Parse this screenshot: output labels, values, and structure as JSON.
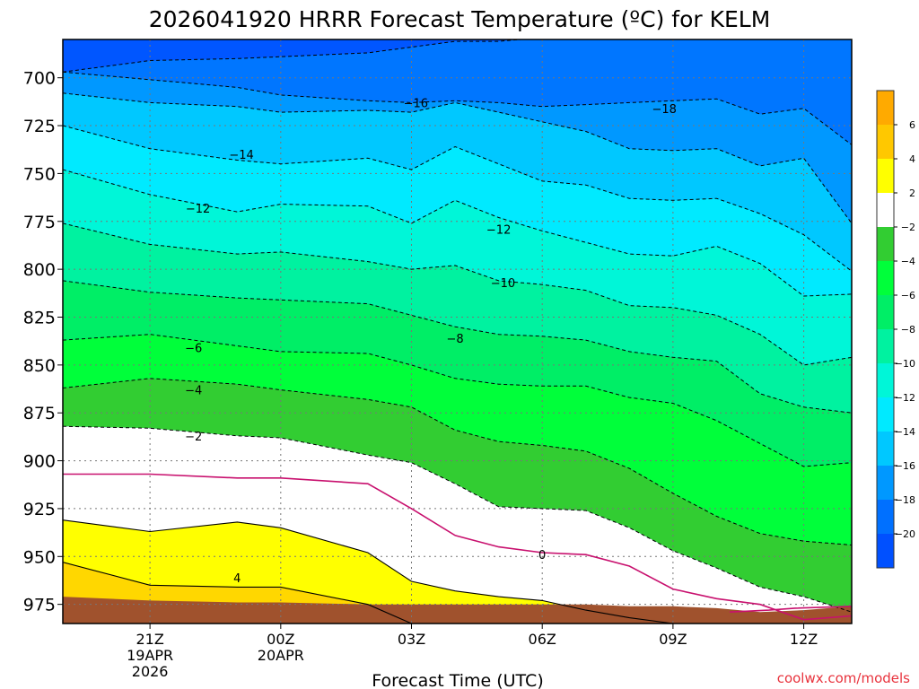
{
  "chart_data": {
    "type": "contour",
    "title": "2026041920 HRRR Forecast Temperature (ºC) for KELM",
    "xlabel": "Forecast Time (UTC)",
    "ylabel": "",
    "credit": "coolwx.com/models",
    "x_range_hours": [
      -1,
      17.1
    ],
    "x_unit": "hours after 20Z 2026-04-19",
    "y_range_mb": [
      680,
      985
    ],
    "x_ticks": [
      {
        "hour": 1,
        "lines": [
          "21Z",
          "19APR",
          "2026"
        ]
      },
      {
        "hour": 4,
        "lines": [
          "00Z",
          "20APR"
        ]
      },
      {
        "hour": 7,
        "lines": [
          "03Z"
        ]
      },
      {
        "hour": 10,
        "lines": [
          "06Z"
        ]
      },
      {
        "hour": 13,
        "lines": [
          "09Z"
        ]
      },
      {
        "hour": 16,
        "lines": [
          "12Z"
        ]
      }
    ],
    "y_ticks": [
      700,
      725,
      750,
      775,
      800,
      825,
      850,
      875,
      900,
      925,
      950,
      975
    ],
    "x_key_hours": [
      -1,
      1,
      3,
      4,
      6,
      7,
      8,
      9,
      10,
      11,
      12,
      13,
      14,
      15,
      16,
      17.1
    ],
    "isotherms": [
      {
        "temp": -20,
        "p": [
          697,
          691,
          690,
          689,
          687,
          684,
          681,
          681,
          679,
          679,
          678,
          680,
          677,
          676,
          677,
          674
        ]
      },
      {
        "temp": -18,
        "p": [
          697,
          701,
          705,
          709,
          712,
          713,
          712,
          713,
          715,
          714,
          713,
          712,
          711,
          719,
          716,
          735
        ]
      },
      {
        "temp": -16,
        "p": [
          708,
          713,
          715,
          718,
          717,
          718,
          713,
          718,
          723,
          728,
          737,
          738,
          737,
          746,
          742,
          776
        ]
      },
      {
        "temp": -14,
        "p": [
          725,
          737,
          743,
          745,
          742,
          748,
          736,
          745,
          754,
          756,
          763,
          764,
          763,
          771,
          782,
          801
        ]
      },
      {
        "temp": -12,
        "p": [
          748,
          761,
          770,
          766,
          767,
          776,
          764,
          773,
          780,
          786,
          792,
          793,
          788,
          797,
          814,
          813
        ]
      },
      {
        "temp": -10,
        "p": [
          776,
          787,
          792,
          791,
          796,
          800,
          798,
          806,
          808,
          811,
          819,
          820,
          824,
          834,
          850,
          846
        ]
      },
      {
        "temp": -8,
        "p": [
          806,
          812,
          815,
          816,
          818,
          824,
          830,
          834,
          835,
          837,
          843,
          846,
          848,
          865,
          872,
          875
        ]
      },
      {
        "temp": -6,
        "p": [
          837,
          834,
          840,
          843,
          844,
          850,
          857,
          860,
          861,
          861,
          867,
          870,
          879,
          891,
          903,
          901
        ]
      },
      {
        "temp": -4,
        "p": [
          862,
          857,
          860,
          863,
          868,
          872,
          884,
          890,
          892,
          895,
          904,
          917,
          929,
          938,
          942,
          944
        ]
      },
      {
        "temp": -2,
        "p": [
          882,
          883,
          887,
          888,
          897,
          901,
          912,
          924,
          925,
          926,
          935,
          947,
          956,
          966,
          971,
          979
        ]
      },
      {
        "temp": 0,
        "p": [
          907,
          907,
          909,
          909,
          912,
          925,
          939,
          945,
          948,
          949,
          955,
          967,
          972,
          975,
          983,
          981
        ]
      },
      {
        "temp": 2,
        "p": [
          931,
          937,
          932,
          935,
          948,
          963,
          968,
          971,
          973,
          978,
          982,
          985,
          985,
          985,
          985,
          985
        ]
      },
      {
        "temp": 4,
        "p": [
          953,
          965,
          966,
          966,
          975,
          985,
          985,
          985,
          985,
          985,
          985,
          985,
          985,
          985,
          985,
          985
        ]
      },
      {
        "temp": 6,
        "p": [
          985,
          985,
          985,
          985,
          985,
          985,
          985,
          985,
          985,
          985,
          985,
          985,
          985,
          985,
          985,
          985
        ]
      }
    ],
    "contour_labels": [
      {
        "temp": "-16",
        "hour": 7.1,
        "p": 713
      },
      {
        "temp": "-18",
        "hour": 12.8,
        "p": 716
      },
      {
        "temp": "-14",
        "hour": 3.1,
        "p": 740
      },
      {
        "temp": "-12",
        "hour": 2.1,
        "p": 768
      },
      {
        "temp": "-12",
        "hour": 9.0,
        "p": 779
      },
      {
        "temp": "-10",
        "hour": 9.1,
        "p": 807
      },
      {
        "temp": "-8",
        "hour": 8.0,
        "p": 836
      },
      {
        "temp": "-6",
        "hour": 2.0,
        "p": 841
      },
      {
        "temp": "-4",
        "hour": 2.0,
        "p": 863
      },
      {
        "temp": "-2",
        "hour": 2.0,
        "p": 887
      },
      {
        "temp": "0",
        "hour": 10.0,
        "p": 949
      },
      {
        "temp": "4",
        "hour": 3.0,
        "p": 961
      }
    ],
    "ground_p": [
      971,
      973,
      974,
      974,
      975,
      975,
      975,
      975,
      975,
      975,
      976,
      976,
      977,
      979,
      978,
      976
    ],
    "colorbar": {
      "labels": [
        "6",
        "4",
        "2",
        "-2",
        "-4",
        "-6",
        "-8",
        "-10",
        "-12",
        "-14",
        "-16",
        "-18",
        "-20"
      ],
      "colors": [
        "#ffaa00",
        "#ffc800",
        "#ffff00",
        "#ffffff",
        "#32cd32",
        "#00ff3a",
        "#00ee66",
        "#00f2a0",
        "#00f6d8",
        "#00eaff",
        "#00c8ff",
        "#0098ff",
        "#0070ff",
        "#0050ff"
      ]
    },
    "band_colors": {
      "below_-20": "#0056ff",
      "-20_-18": "#0076ff",
      "-18_-16": "#0098ff",
      "-16_-14": "#00c8ff",
      "-14_-12": "#00eaff",
      "-12_-10": "#00f6d8",
      "-10_-8": "#00f2a0",
      "-8_-6": "#00ee66",
      "-6_-4": "#00ff3a",
      "-4_-2": "#32cd32",
      "-2_0": "#ffffff",
      "0_2": "#ffffff",
      "2_4": "#ffff00",
      "4_6": "#ffd700",
      "ground": "#a0522d"
    }
  }
}
